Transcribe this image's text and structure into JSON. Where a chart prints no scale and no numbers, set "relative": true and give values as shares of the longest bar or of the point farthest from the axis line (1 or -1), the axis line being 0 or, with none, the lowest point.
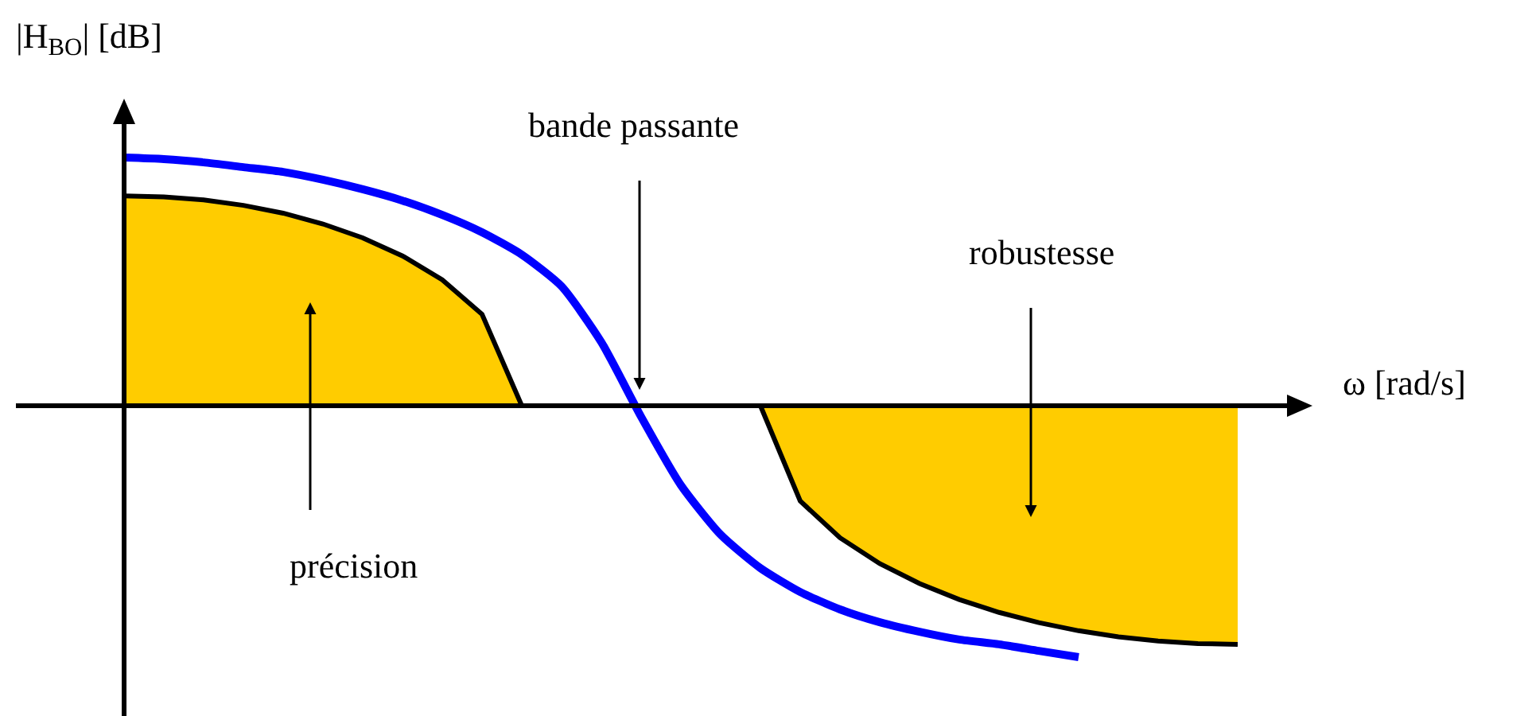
{
  "chart_data": {
    "type": "line",
    "relative": true,
    "xlabel": "ω [rad/s]",
    "ylabel": "|H$_{BO}$| [dB]",
    "annotations": [
      "bande passante",
      "robustesse",
      "précision"
    ],
    "categories": [
      null,
      null,
      null,
      null,
      null,
      null,
      null,
      null,
      null,
      null,
      null,
      null,
      null,
      null,
      null,
      null,
      null,
      null,
      null,
      null,
      null,
      null,
      null,
      null,
      null,
      null,
      null,
      null,
      null
    ],
    "series": [
      {
        "type": "area",
        "color": "#ffcc00",
        "values": [
          0.835,
          0.831,
          0.819,
          0.797,
          0.766,
          0.723,
          0.668,
          0.596,
          0.501,
          0.364,
          0,
          null,
          null,
          null,
          null,
          null,
          null,
          null,
          null,
          null,
          null,
          null,
          null,
          null,
          null,
          null,
          null,
          null,
          null
        ]
      },
      {
        "type": "area",
        "color": "#ffcc00",
        "values": [
          null,
          null,
          null,
          null,
          null,
          null,
          null,
          null,
          null,
          null,
          null,
          null,
          null,
          null,
          null,
          null,
          0,
          -0.379,
          -0.525,
          -0.628,
          -0.707,
          -0.771,
          -0.822,
          -0.863,
          -0.895,
          -0.919,
          -0.936,
          -0.946,
          -0.949
        ]
      },
      {
        "type": "line",
        "color": "#0000ff",
        "values": [
          0.987,
          0.981,
          0.968,
          0.949,
          0.93,
          0.899,
          0.861,
          0.816,
          0.759,
          0.69,
          0.601,
          0.475,
          0.253,
          -0.044,
          -0.316,
          -0.513,
          -0.646,
          -0.741,
          -0.81,
          -0.861,
          -0.899,
          -0.93,
          -0.949,
          -0.975,
          -1,
          null,
          null,
          null,
          null
        ]
      }
    ]
  }
}
